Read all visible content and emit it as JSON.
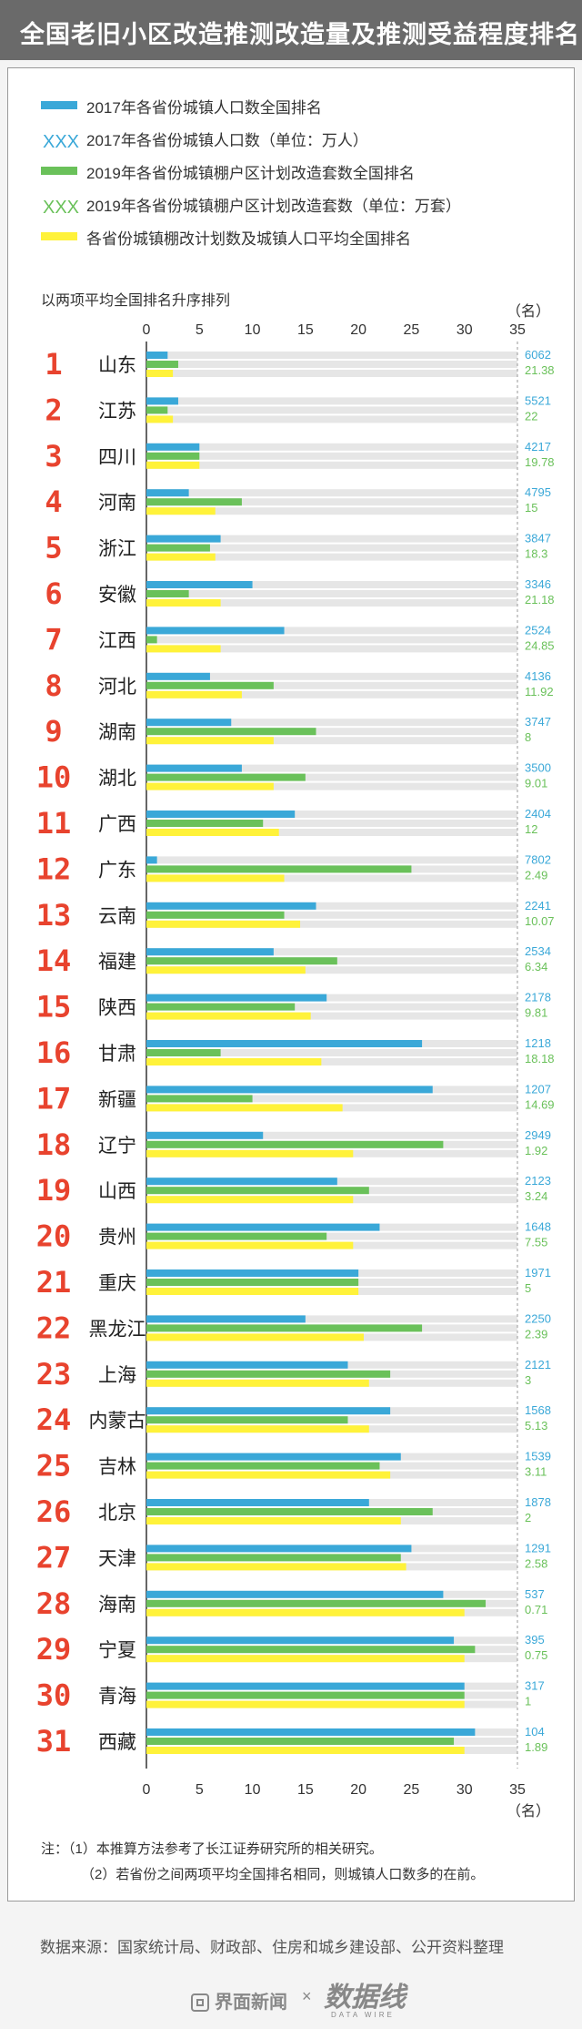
{
  "title": "全国老旧小区改造推测改造量及推测受益程度排名",
  "legend": [
    {
      "marker": "bar",
      "color": "#3aa8d8",
      "label": "2017年各省份城镇人口数全国排名"
    },
    {
      "marker": "XXX",
      "color": "#3aa8d8",
      "label": "2017年各省份城镇人口数（单位：万人）"
    },
    {
      "marker": "bar",
      "color": "#6ac15a",
      "label": "2019年各省份城镇棚户区计划改造套数全国排名"
    },
    {
      "marker": "XXX",
      "color": "#6ac15a",
      "label": "2019年各省份城镇棚户区计划改造套数（单位：万套）"
    },
    {
      "marker": "bar",
      "color": "#fff23a",
      "label": "各省份城镇棚改计划数及城镇人口平均全国排名"
    }
  ],
  "sort_note": "以两项平均全国排名升序排列",
  "axis_unit": "（名）",
  "notes": [
    "注：（1）本推算方法参考了长江证券研究所的相关研究。",
    "（2）若省份之间两项平均全国排名相同，则城镇人口数多的在前。"
  ],
  "source": "数据来源：国家统计局、财政部、住房和城乡建设部、公开资料整理",
  "footer": {
    "brand": "界面新闻",
    "times": "×",
    "partner": "数据线",
    "partner_sub": "DATA WIRE"
  },
  "colors": {
    "pop": "#3aa8d8",
    "shed": "#6ac15a",
    "avg": "#fff23a",
    "rank": "#e8432e",
    "grid": "#e6e6e6"
  },
  "chart_data": {
    "type": "bar",
    "orientation": "horizontal",
    "xlim": [
      0,
      35
    ],
    "xticks": [
      0,
      5,
      10,
      15,
      20,
      25,
      30,
      35
    ],
    "categories": [
      "山东",
      "江苏",
      "四川",
      "河南",
      "浙江",
      "安徽",
      "江西",
      "河北",
      "湖南",
      "湖北",
      "广西",
      "广东",
      "云南",
      "福建",
      "陕西",
      "甘肃",
      "新疆",
      "辽宁",
      "山西",
      "贵州",
      "重庆",
      "黑龙江",
      "上海",
      "内蒙古",
      "吉林",
      "北京",
      "天津",
      "海南",
      "宁夏",
      "青海",
      "西藏"
    ],
    "ranks": [
      1,
      2,
      3,
      4,
      5,
      6,
      7,
      8,
      9,
      10,
      11,
      12,
      13,
      14,
      15,
      16,
      17,
      18,
      19,
      20,
      21,
      22,
      23,
      24,
      25,
      26,
      27,
      28,
      29,
      30,
      31
    ],
    "series": [
      {
        "name": "2017年各省份城镇人口数全国排名",
        "values": [
          2,
          3,
          5,
          4,
          7,
          10,
          13,
          6,
          8,
          9,
          14,
          1,
          16,
          12,
          17,
          26,
          27,
          11,
          18,
          22,
          20,
          15,
          19,
          23,
          24,
          21,
          25,
          28,
          29,
          30,
          31
        ]
      },
      {
        "name": "2019年各省份城镇棚户区计划改造套数全国排名",
        "values": [
          3,
          2,
          5,
          9,
          6,
          4,
          1,
          12,
          16,
          15,
          11,
          25,
          13,
          18,
          14,
          7,
          10,
          28,
          21,
          17,
          20,
          26,
          23,
          19,
          22,
          27,
          24,
          32,
          31,
          30,
          29
        ]
      },
      {
        "name": "各省份城镇棚改计划数及城镇人口平均全国排名",
        "values": [
          2.5,
          2.5,
          5,
          6.5,
          6.5,
          7,
          7,
          9,
          12,
          12,
          12.5,
          13,
          14.5,
          15,
          15.5,
          16.5,
          18.5,
          19.5,
          19.5,
          19.5,
          20,
          20.5,
          21,
          21,
          23,
          24,
          24.5,
          30,
          30,
          30,
          30
        ]
      }
    ],
    "pop_labels": [
      "6062",
      "5521",
      "4217",
      "4795",
      "3847",
      "3346",
      "2524",
      "4136",
      "3747",
      "3500",
      "2404",
      "7802",
      "2241",
      "2534",
      "2178",
      "1218",
      "1207",
      "2949",
      "2123",
      "1648",
      "1971",
      "2250",
      "2121",
      "1568",
      "1539",
      "1878",
      "1291",
      "537",
      "395",
      "317",
      "104"
    ],
    "shed_labels": [
      "21.38",
      "22",
      "19.78",
      "15",
      "18.3",
      "21.18",
      "24.85",
      "11.92",
      "8",
      "9.01",
      "12",
      "2.49",
      "10.07",
      "6.34",
      "9.81",
      "18.18",
      "14.69",
      "1.92",
      "3.24",
      "7.55",
      "5",
      "2.39",
      "3",
      "5.13",
      "3.11",
      "2",
      "2.58",
      "0.71",
      "0.75",
      "1",
      "1.89"
    ]
  }
}
